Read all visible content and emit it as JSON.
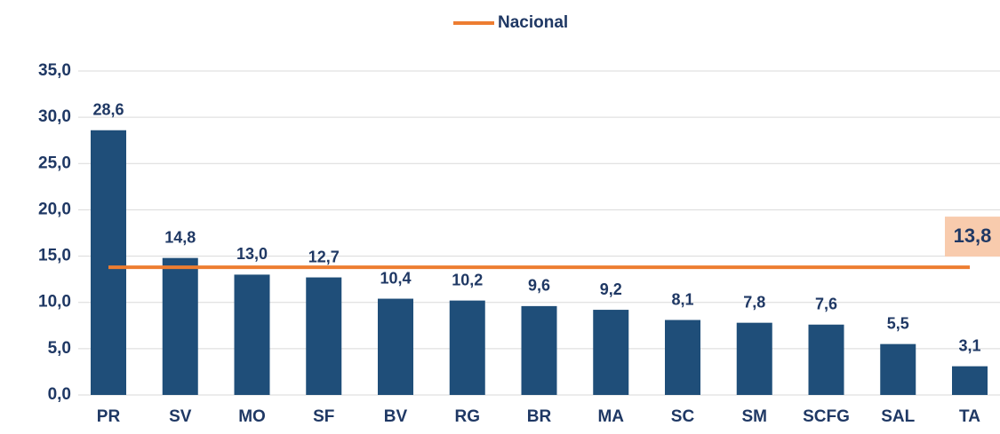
{
  "chart_data": {
    "type": "bar",
    "categories": [
      "PR",
      "SV",
      "MO",
      "SF",
      "BV",
      "RG",
      "BR",
      "MA",
      "SC",
      "SM",
      "SCFG",
      "SAL",
      "TA"
    ],
    "values": [
      28.6,
      14.8,
      13.0,
      12.7,
      10.4,
      10.2,
      9.6,
      9.2,
      8.1,
      7.8,
      7.6,
      5.5,
      3.1
    ],
    "value_labels": [
      "28,6",
      "14,8",
      "13,0",
      "12,7",
      "10,4",
      "10,2",
      "9,6",
      "9,2",
      "8,1",
      "7,8",
      "7,6",
      "5,5",
      "3,1"
    ],
    "color": "#1f4e79",
    "ylim": [
      0,
      35
    ],
    "yticks": [
      {
        "value": 0,
        "label": "0,0"
      },
      {
        "value": 5,
        "label": "5,0"
      },
      {
        "value": 10,
        "label": "10,0"
      },
      {
        "value": 15,
        "label": "15,0"
      },
      {
        "value": 20,
        "label": "20,0"
      },
      {
        "value": 25,
        "label": "25,0"
      },
      {
        "value": 30,
        "label": "30,0"
      },
      {
        "value": 35,
        "label": "35,0"
      }
    ],
    "grid": true,
    "reference_line": {
      "name": "Nacional",
      "value": 13.8,
      "label": "13,8",
      "color": "#ed7d31"
    }
  }
}
